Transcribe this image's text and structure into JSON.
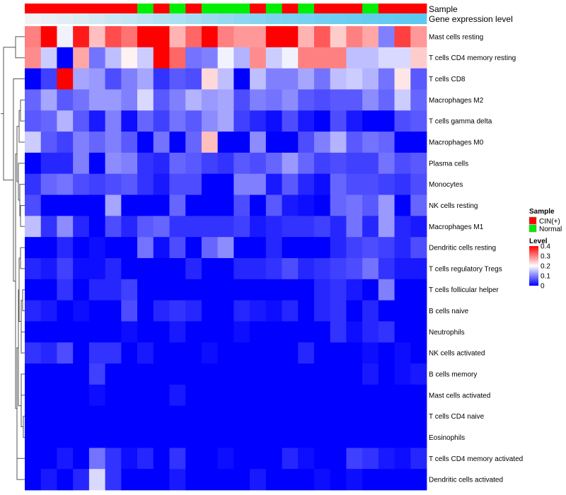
{
  "chart_data": {
    "type": "heatmap",
    "title": "",
    "annotation_labels": {
      "sample": "Sample",
      "gene_expression": "Gene expression level"
    },
    "row_labels": [
      "Mast cells resting",
      "T cells CD4 memory resting",
      "T cells CD8",
      "Macrophages M2",
      "T cells gamma delta",
      "Macrophages M0",
      "Plasma cells",
      "Monocytes",
      "NK cells resting",
      "Macrophages M1",
      "Dendritic cells resting",
      "T cells regulatory  Tregs",
      "T cells follicular helper",
      "B cells naive",
      "Neutrophils",
      "NK cells activated",
      "B cells memory",
      "Mast cells activated",
      "T cells CD4 naive",
      "Eosinophils",
      "T cells CD4 memory activated",
      "Dendritic cells activated"
    ],
    "sample_groups": [
      "CIN(+)",
      "CIN(+)",
      "CIN(+)",
      "CIN(+)",
      "CIN(+)",
      "CIN(+)",
      "CIN(+)",
      "Normal",
      "CIN(+)",
      "Normal",
      "CIN(+)",
      "Normal",
      "Normal",
      "Normal",
      "CIN(+)",
      "Normal",
      "CIN(+)",
      "Normal",
      "CIN(+)",
      "CIN(+)",
      "CIN(+)",
      "Normal",
      "CIN(+)",
      "CIN(+)",
      "CIN(+)"
    ],
    "gene_expression_level": [
      0.4,
      0.38,
      0.36,
      0.34,
      0.32,
      0.3,
      0.28,
      0.26,
      0.24,
      0.22,
      0.2,
      0.18,
      0.16,
      0.14,
      0.12,
      0.1,
      0.09,
      0.08,
      0.07,
      0.06,
      0.05,
      0.04,
      0.03,
      0.02,
      0.01
    ],
    "values": [
      [
        0.3,
        0.4,
        0.19,
        0.38,
        0.25,
        0.34,
        0.31,
        0.4,
        0.4,
        0.26,
        0.32,
        0.4,
        0.3,
        0.28,
        0.28,
        0.4,
        0.4,
        0.26,
        0.33,
        0.24,
        0.3,
        0.27,
        0.1,
        0.35,
        0.28
      ],
      [
        0.29,
        0.16,
        0.0,
        0.27,
        0.09,
        0.15,
        0.21,
        0.16,
        0.4,
        0.32,
        0.09,
        0.1,
        0.19,
        0.14,
        0.29,
        0.16,
        0.19,
        0.3,
        0.3,
        0.3,
        0.15,
        0.15,
        0.17,
        0.17,
        0.24
      ],
      [
        0.0,
        0.05,
        0.4,
        0.13,
        0.12,
        0.06,
        0.1,
        0.13,
        0.04,
        0.07,
        0.06,
        0.23,
        0.15,
        0.0,
        0.15,
        0.1,
        0.1,
        0.13,
        0.09,
        0.15,
        0.16,
        0.14,
        0.09,
        0.22,
        0.07
      ],
      [
        0.08,
        0.13,
        0.07,
        0.09,
        0.12,
        0.12,
        0.1,
        0.17,
        0.07,
        0.1,
        0.14,
        0.12,
        0.13,
        0.06,
        0.1,
        0.09,
        0.11,
        0.07,
        0.06,
        0.07,
        0.07,
        0.11,
        0.08,
        0.16,
        0.08
      ],
      [
        0.07,
        0.08,
        0.14,
        0.07,
        0.02,
        0.1,
        0.01,
        0.08,
        0.05,
        0.09,
        0.07,
        0.11,
        0.13,
        0.05,
        0.03,
        0.01,
        0.06,
        0.02,
        0.0,
        0.06,
        0.02,
        0.0,
        0.0,
        0.06,
        0.07
      ],
      [
        0.16,
        0.07,
        0.05,
        0.1,
        0.08,
        0.1,
        0.07,
        0.0,
        0.09,
        0.0,
        0.08,
        0.25,
        0.0,
        0.0,
        0.11,
        0.0,
        0.0,
        0.06,
        0.1,
        0.14,
        0.07,
        0.09,
        0.08,
        0.0,
        0.0
      ],
      [
        0.0,
        0.03,
        0.03,
        0.1,
        0.0,
        0.11,
        0.1,
        0.04,
        0.03,
        0.08,
        0.07,
        0.05,
        0.04,
        0.07,
        0.06,
        0.08,
        0.12,
        0.08,
        0.05,
        0.06,
        0.05,
        0.05,
        0.09,
        0.06,
        0.07
      ],
      [
        0.04,
        0.08,
        0.09,
        0.06,
        0.05,
        0.06,
        0.07,
        0.04,
        0.02,
        0.06,
        0.06,
        0.0,
        0.0,
        0.1,
        0.1,
        0.02,
        0.07,
        0.03,
        0.01,
        0.08,
        0.06,
        0.06,
        0.05,
        0.04,
        0.06
      ],
      [
        0.06,
        0.0,
        0.0,
        0.0,
        0.0,
        0.13,
        0.0,
        0.0,
        0.0,
        0.08,
        0.0,
        0.0,
        0.0,
        0.06,
        0.0,
        0.07,
        0.02,
        0.01,
        0.0,
        0.08,
        0.09,
        0.07,
        0.12,
        0.0,
        0.08
      ],
      [
        0.15,
        0.04,
        0.11,
        0.03,
        0.0,
        0.06,
        0.03,
        0.07,
        0.08,
        0.04,
        0.04,
        0.04,
        0.04,
        0.05,
        0.02,
        0.03,
        0.04,
        0.04,
        0.05,
        0.03,
        0.09,
        0.03,
        0.12,
        0.03,
        0.02
      ],
      [
        0.0,
        0.0,
        0.03,
        0.0,
        0.01,
        0.0,
        0.0,
        0.09,
        0.01,
        0.06,
        0.0,
        0.08,
        0.11,
        0.0,
        0.0,
        0.03,
        0.0,
        0.0,
        0.0,
        0.03,
        0.05,
        0.06,
        0.05,
        0.03,
        0.06
      ],
      [
        0.03,
        0.02,
        0.05,
        0.01,
        0.01,
        0.03,
        0.0,
        0.0,
        0.0,
        0.0,
        0.03,
        0.0,
        0.0,
        0.03,
        0.03,
        0.04,
        0.06,
        0.03,
        0.04,
        0.05,
        0.06,
        0.09,
        0.04,
        0.02,
        0.02
      ],
      [
        0.0,
        0.0,
        0.04,
        0.0,
        0.03,
        0.03,
        0.05,
        0.0,
        0.0,
        0.0,
        0.0,
        0.0,
        0.0,
        0.0,
        0.0,
        0.0,
        0.0,
        0.0,
        0.03,
        0.04,
        0.02,
        0.0,
        0.1,
        0.0,
        0.0
      ],
      [
        0.03,
        0.02,
        0.0,
        0.01,
        0.0,
        0.0,
        0.06,
        0.0,
        0.03,
        0.04,
        0.03,
        0.0,
        0.0,
        0.03,
        0.02,
        0.01,
        0.03,
        0.0,
        0.03,
        0.04,
        0.0,
        0.03,
        0.0,
        0.0,
        0.0
      ],
      [
        0.0,
        0.0,
        0.0,
        0.0,
        0.0,
        0.0,
        0.01,
        0.0,
        0.0,
        0.02,
        0.0,
        0.0,
        0.0,
        0.01,
        0.0,
        0.0,
        0.0,
        0.0,
        0.0,
        0.04,
        0.01,
        0.03,
        0.04,
        0.0,
        0.0
      ],
      [
        0.04,
        0.03,
        0.06,
        0.0,
        0.04,
        0.04,
        0.0,
        0.02,
        0.0,
        0.0,
        0.0,
        0.01,
        0.0,
        0.0,
        0.0,
        0.0,
        0.0,
        0.03,
        0.0,
        0.0,
        0.0,
        0.01,
        0.0,
        0.01,
        0.0
      ],
      [
        0.0,
        0.0,
        0.0,
        0.0,
        0.05,
        0.0,
        0.0,
        0.0,
        0.0,
        0.0,
        0.0,
        0.0,
        0.0,
        0.0,
        0.0,
        0.0,
        0.0,
        0.0,
        0.0,
        0.0,
        0.0,
        0.02,
        0.0,
        0.01,
        0.02
      ],
      [
        0.0,
        0.0,
        0.0,
        0.0,
        0.01,
        0.0,
        0.0,
        0.0,
        0.0,
        0.02,
        0.0,
        0.0,
        0.0,
        0.0,
        0.0,
        0.0,
        0.0,
        0.0,
        0.0,
        0.0,
        0.0,
        0.0,
        0.0,
        0.0,
        0.0
      ],
      [
        0.0,
        0.0,
        0.0,
        0.0,
        0.0,
        0.0,
        0.0,
        0.0,
        0.0,
        0.0,
        0.0,
        0.0,
        0.0,
        0.0,
        0.0,
        0.0,
        0.0,
        0.0,
        0.0,
        0.0,
        0.0,
        0.0,
        0.0,
        0.0,
        0.0
      ],
      [
        0.0,
        0.0,
        0.0,
        0.0,
        0.0,
        0.0,
        0.0,
        0.0,
        0.0,
        0.0,
        0.0,
        0.0,
        0.0,
        0.0,
        0.0,
        0.0,
        0.0,
        0.0,
        0.0,
        0.0,
        0.0,
        0.0,
        0.0,
        0.0,
        0.0
      ],
      [
        0.0,
        0.0,
        0.02,
        0.0,
        0.09,
        0.04,
        0.01,
        0.03,
        0.0,
        0.04,
        0.0,
        0.0,
        0.01,
        0.0,
        0.0,
        0.0,
        0.03,
        0.01,
        0.0,
        0.0,
        0.05,
        0.04,
        0.02,
        0.01,
        0.03
      ],
      [
        0.0,
        0.02,
        0.0,
        0.03,
        0.17,
        0.04,
        0.0,
        0.0,
        0.0,
        0.02,
        0.0,
        0.0,
        0.0,
        0.0,
        0.02,
        0.0,
        0.0,
        0.0,
        0.01,
        0.0,
        0.01,
        0.0,
        0.0,
        0.0,
        0.0
      ]
    ],
    "color_scale": {
      "min": 0,
      "max": 0.4,
      "low": "#0000ff",
      "mid": "#ffffff",
      "high": "#ff0000",
      "midpoint": 0.2
    },
    "legends": {
      "sample": {
        "title": "Sample",
        "items": [
          {
            "label": "CIN(+)",
            "color": "#ff0000"
          },
          {
            "label": "Normal",
            "color": "#00ee00"
          }
        ]
      },
      "level": {
        "title": "Level",
        "ticks": [
          "0.4",
          "0.3",
          "0.2",
          "0.1",
          "0"
        ]
      }
    },
    "annotation_colors": {
      "cin": "#ff0000",
      "normal": "#00ee00",
      "gene_low": "#f2f2f4",
      "gene_high": "#5bc8f0"
    },
    "dendrogram": "row clustering tree (left side)"
  }
}
